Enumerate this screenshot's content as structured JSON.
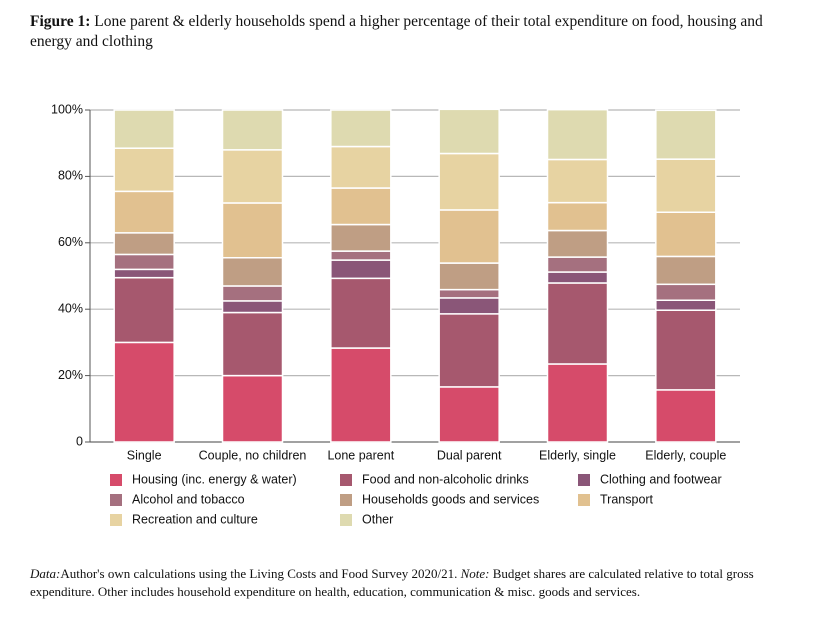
{
  "chart_data": {
    "type": "stacked_bar",
    "figure_label": "Figure 1:",
    "title": "Lone parent & elderly households spend a higher percentage of their total expenditure on food, housing and energy and clothing",
    "categories": [
      "Single",
      "Couple, no children",
      "Lone parent",
      "Dual parent",
      "Elderly, single",
      "Elderly, couple"
    ],
    "series": [
      {
        "name": "Housing (inc. energy & water)",
        "color": "#d64b6a",
        "values": [
          30,
          20,
          28.3,
          16.6,
          23.5,
          15.7
        ]
      },
      {
        "name": "Food and non-alcoholic drinks",
        "color": "#a6586e",
        "values": [
          19.5,
          19,
          21,
          22,
          24.4,
          24
        ]
      },
      {
        "name": "Clothing and footwear",
        "color": "#8a5678",
        "values": [
          2.5,
          3.5,
          5.5,
          4.8,
          3.3,
          3
        ]
      },
      {
        "name": "Alcohol and tobacco",
        "color": "#a5707f",
        "values": [
          4.5,
          4.5,
          2.7,
          2.5,
          4.5,
          4.8
        ]
      },
      {
        "name": "Households goods and services",
        "color": "#bf9e84",
        "values": [
          6.5,
          8.5,
          8,
          8,
          8,
          8.4
        ]
      },
      {
        "name": "Transport",
        "color": "#e1c190",
        "values": [
          12.5,
          16.5,
          11,
          16,
          8.4,
          13.3
        ]
      },
      {
        "name": "Recreation and culture",
        "color": "#e7d3a2",
        "values": [
          13,
          16,
          12.5,
          17,
          13,
          16
        ]
      },
      {
        "name": "Other",
        "color": "#dedab0",
        "values": [
          11.5,
          12,
          11,
          13.3,
          15,
          14.7
        ]
      }
    ],
    "ylim": [
      0,
      100
    ],
    "yticks": [
      0,
      {
        "value": 20,
        "label": "20%"
      },
      {
        "value": 40,
        "label": "40%"
      },
      {
        "value": 60,
        "label": "60%"
      },
      {
        "value": 80,
        "label": "80%"
      },
      {
        "value": 100,
        "label": "100%"
      }
    ],
    "grid": true,
    "legend_position": "bottom",
    "footnote": {
      "data_label": "Data:",
      "data_text": "Author's own calculations using the Living Costs and Food Survey 2020/21.",
      "note_label": "Note:",
      "note_text": "Budget shares are calculated relative to total gross expenditure. Other includes household expenditure on health, education, communication & misc. goods and services."
    }
  }
}
